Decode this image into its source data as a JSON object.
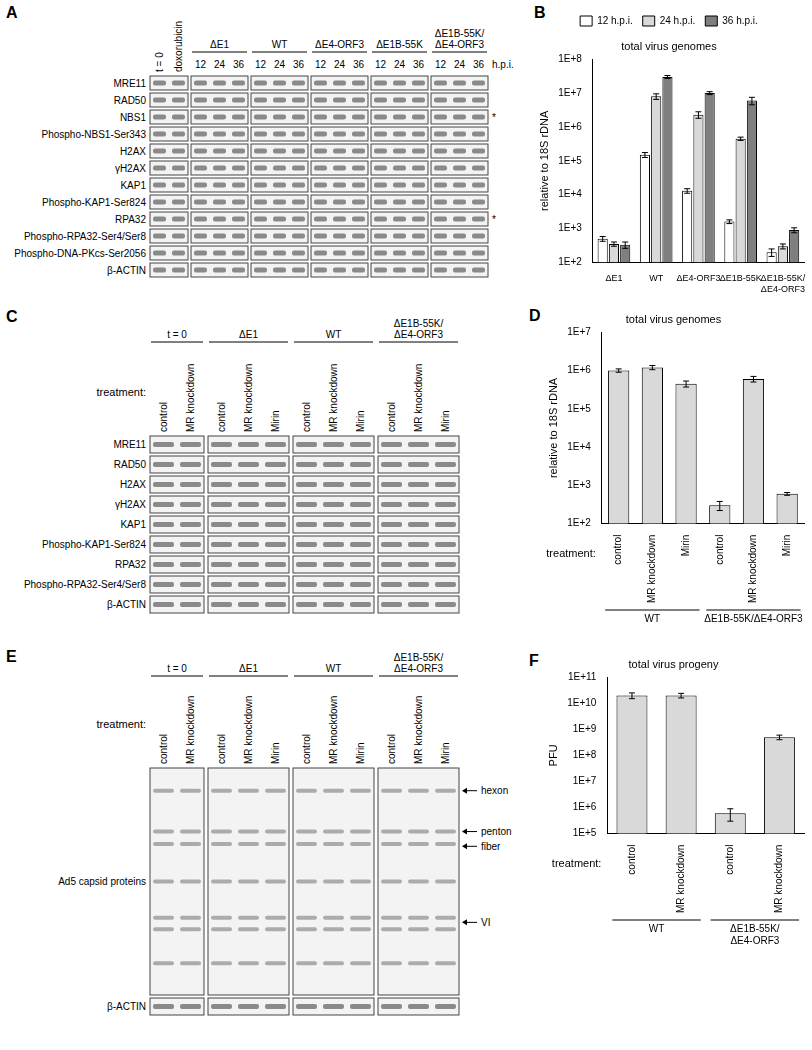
{
  "blots": [
    {
      "panel": "A",
      "lane_groups": [
        {
          "lanes": [
            "t = 0",
            "doxorubicin"
          ]
        },
        {
          "label": "ΔE1",
          "lanes": [
            "12",
            "24",
            "36"
          ]
        },
        {
          "label": "WT",
          "lanes": [
            "12",
            "24",
            "36"
          ]
        },
        {
          "label": "ΔE4-ORF3",
          "lanes": [
            "12",
            "24",
            "36"
          ]
        },
        {
          "label": "ΔE1B-55K",
          "lanes": [
            "12",
            "24",
            "36"
          ]
        },
        {
          "label": "ΔE1B-55K/ΔE4-ORF3",
          "lanes": [
            "12",
            "24",
            "36"
          ]
        }
      ],
      "lane_suffix": "h.p.i.",
      "rows": [
        {
          "label": "MRE11"
        },
        {
          "label": "RAD50"
        },
        {
          "label": "NBS1",
          "marks": [
            "*"
          ]
        },
        {
          "label": "Phospho-NBS1-Ser343"
        },
        {
          "label": "H2AX"
        },
        {
          "label": "γH2AX"
        },
        {
          "label": "KAP1"
        },
        {
          "label": "Phospho-KAP1-Ser824"
        },
        {
          "label": "RPA32",
          "marks": [
            "*"
          ]
        },
        {
          "label": "Phospho-RPA32-Ser4/Ser8"
        },
        {
          "label": "Phospho-DNA-PKcs-Ser2056"
        },
        {
          "label": "β-ACTIN"
        }
      ]
    },
    {
      "panel": "C",
      "lane_title": "treatment:",
      "lane_groups": [
        {
          "label": "t = 0",
          "lanes": [
            "control",
            "MR knockdown"
          ]
        },
        {
          "label": "ΔE1",
          "lanes": [
            "control",
            "MR knockdown",
            "Mirin"
          ]
        },
        {
          "label": "WT",
          "lanes": [
            "control",
            "MR knockdown",
            "Mirin"
          ]
        },
        {
          "label": "ΔE1B-55K/ΔE4-ORF3",
          "lanes": [
            "control",
            "MR knockdown",
            "Mirin"
          ]
        }
      ],
      "rows": [
        {
          "label": "MRE11"
        },
        {
          "label": "RAD50"
        },
        {
          "label": "H2AX"
        },
        {
          "label": "γH2AX"
        },
        {
          "label": "KAP1"
        },
        {
          "label": "Phospho-KAP1-Ser824"
        },
        {
          "label": "RPA32"
        },
        {
          "label": "Phospho-RPA32-Ser4/Ser8"
        },
        {
          "label": "β-ACTIN"
        }
      ]
    },
    {
      "panel": "E",
      "lane_title": "treatment:",
      "lane_groups": [
        {
          "label": "t = 0",
          "lanes": [
            "control",
            "MR knockdown"
          ]
        },
        {
          "label": "ΔE1",
          "lanes": [
            "control",
            "MR knockdown",
            "Mirin"
          ]
        },
        {
          "label": "WT",
          "lanes": [
            "control",
            "MR knockdown",
            "Mirin"
          ]
        },
        {
          "label": "ΔE1B-55K/ΔE4-ORF3",
          "lanes": [
            "control",
            "MR knockdown",
            "Mirin"
          ]
        }
      ],
      "rows": [
        {
          "label": "Ad5 capsid proteins",
          "band_labels": [
            "hexon",
            "penton",
            "fiber",
            "VI"
          ]
        },
        {
          "label": "β-ACTIN"
        }
      ]
    }
  ],
  "chart_data": [
    {
      "panel": "B",
      "type": "bar",
      "title": "total virus genomes",
      "y_label": "relative to 18S rDNA",
      "categories": [
        "ΔE1",
        "WT",
        "ΔE4-ORF3",
        "ΔE1B-55K",
        "ΔE1B-55K/ΔE4-ORF3"
      ],
      "series": [
        {
          "name": "12 h.p.i.",
          "color": "#ffffff",
          "values": [
            500,
            150000,
            13000,
            1600,
            200
          ],
          "errors": [
            80,
            25000,
            2000,
            200,
            50
          ]
        },
        {
          "name": "24 h.p.i.",
          "color": "#d9d9d9",
          "values": [
            350,
            8000000,
            2300000,
            450000,
            300
          ],
          "errors": [
            50,
            1500000,
            500000,
            50000,
            50
          ]
        },
        {
          "name": "36 h.p.i.",
          "color": "#7f7f7f",
          "values": [
            330,
            30000000,
            10000000,
            6000000,
            900
          ],
          "errors": [
            70,
            3000000,
            1000000,
            1500000,
            150
          ]
        }
      ],
      "ylim": [
        100,
        100000000
      ],
      "yticks": [
        {
          "value": 100,
          "label": "1E+2"
        },
        {
          "value": 1000,
          "label": "1E+3"
        },
        {
          "value": 10000,
          "label": "1E+4"
        },
        {
          "value": 100000,
          "label": "1E+5"
        },
        {
          "value": 1000000,
          "label": "1E+6"
        },
        {
          "value": 10000000,
          "label": "1E+7"
        },
        {
          "value": 100000000,
          "label": "1E+8"
        }
      ],
      "log": "y",
      "grid": false,
      "legend": "top"
    },
    {
      "panel": "D",
      "type": "bar",
      "title": "total virus genomes",
      "y_label": "relative to 18S rDNA",
      "x_label": "treatment:",
      "categories": [
        "control",
        "MR knockdown",
        "Mirin",
        "control",
        "MR knockdown",
        "Mirin"
      ],
      "groups": [
        "WT",
        "WT",
        "WT",
        "ΔE1B-55K/ΔE4-ORF3",
        "ΔE1B-55K/ΔE4-ORF3",
        "ΔE1B-55K/ΔE4-ORF3"
      ],
      "values": [
        1000000,
        1200000,
        450000,
        300,
        600000,
        600
      ],
      "errors": [
        100000,
        150000,
        80000,
        80,
        100000,
        50
      ],
      "color": "#d9d9d9",
      "ylim": [
        100,
        10000000
      ],
      "yticks": [
        {
          "value": 100,
          "label": "1E+2"
        },
        {
          "value": 1000,
          "label": "1E+3"
        },
        {
          "value": 10000,
          "label": "1E+4"
        },
        {
          "value": 100000,
          "label": "1E+5"
        },
        {
          "value": 1000000,
          "label": "1E+6"
        },
        {
          "value": 10000000,
          "label": "1E+7"
        }
      ],
      "log": "y",
      "grid": false
    },
    {
      "panel": "F",
      "type": "bar",
      "title": "total virus progeny",
      "y_label": "PFU",
      "x_label": "treatment:",
      "categories": [
        "control",
        "MR knockdown",
        "control",
        "MR knockdown"
      ],
      "groups": [
        "WT",
        "WT",
        "ΔE1B-55K/ΔE4-ORF3",
        "ΔE1B-55K/ΔE4-ORF3"
      ],
      "values": [
        20000000000,
        20000000000,
        600000,
        500000000
      ],
      "errors": [
        5000000000,
        4000000000,
        300000,
        100000000
      ],
      "color": "#d9d9d9",
      "ylim": [
        100000,
        100000000000
      ],
      "yticks": [
        {
          "value": 100000,
          "label": "1E+5"
        },
        {
          "value": 1000000,
          "label": "1E+6"
        },
        {
          "value": 10000000,
          "label": "1E+7"
        },
        {
          "value": 100000000,
          "label": "1E+8"
        },
        {
          "value": 1000000000,
          "label": "1E+9"
        },
        {
          "value": 10000000000,
          "label": "1E+10"
        },
        {
          "value": 100000000000,
          "label": "1E+11"
        }
      ],
      "log": "y",
      "grid": false
    }
  ]
}
